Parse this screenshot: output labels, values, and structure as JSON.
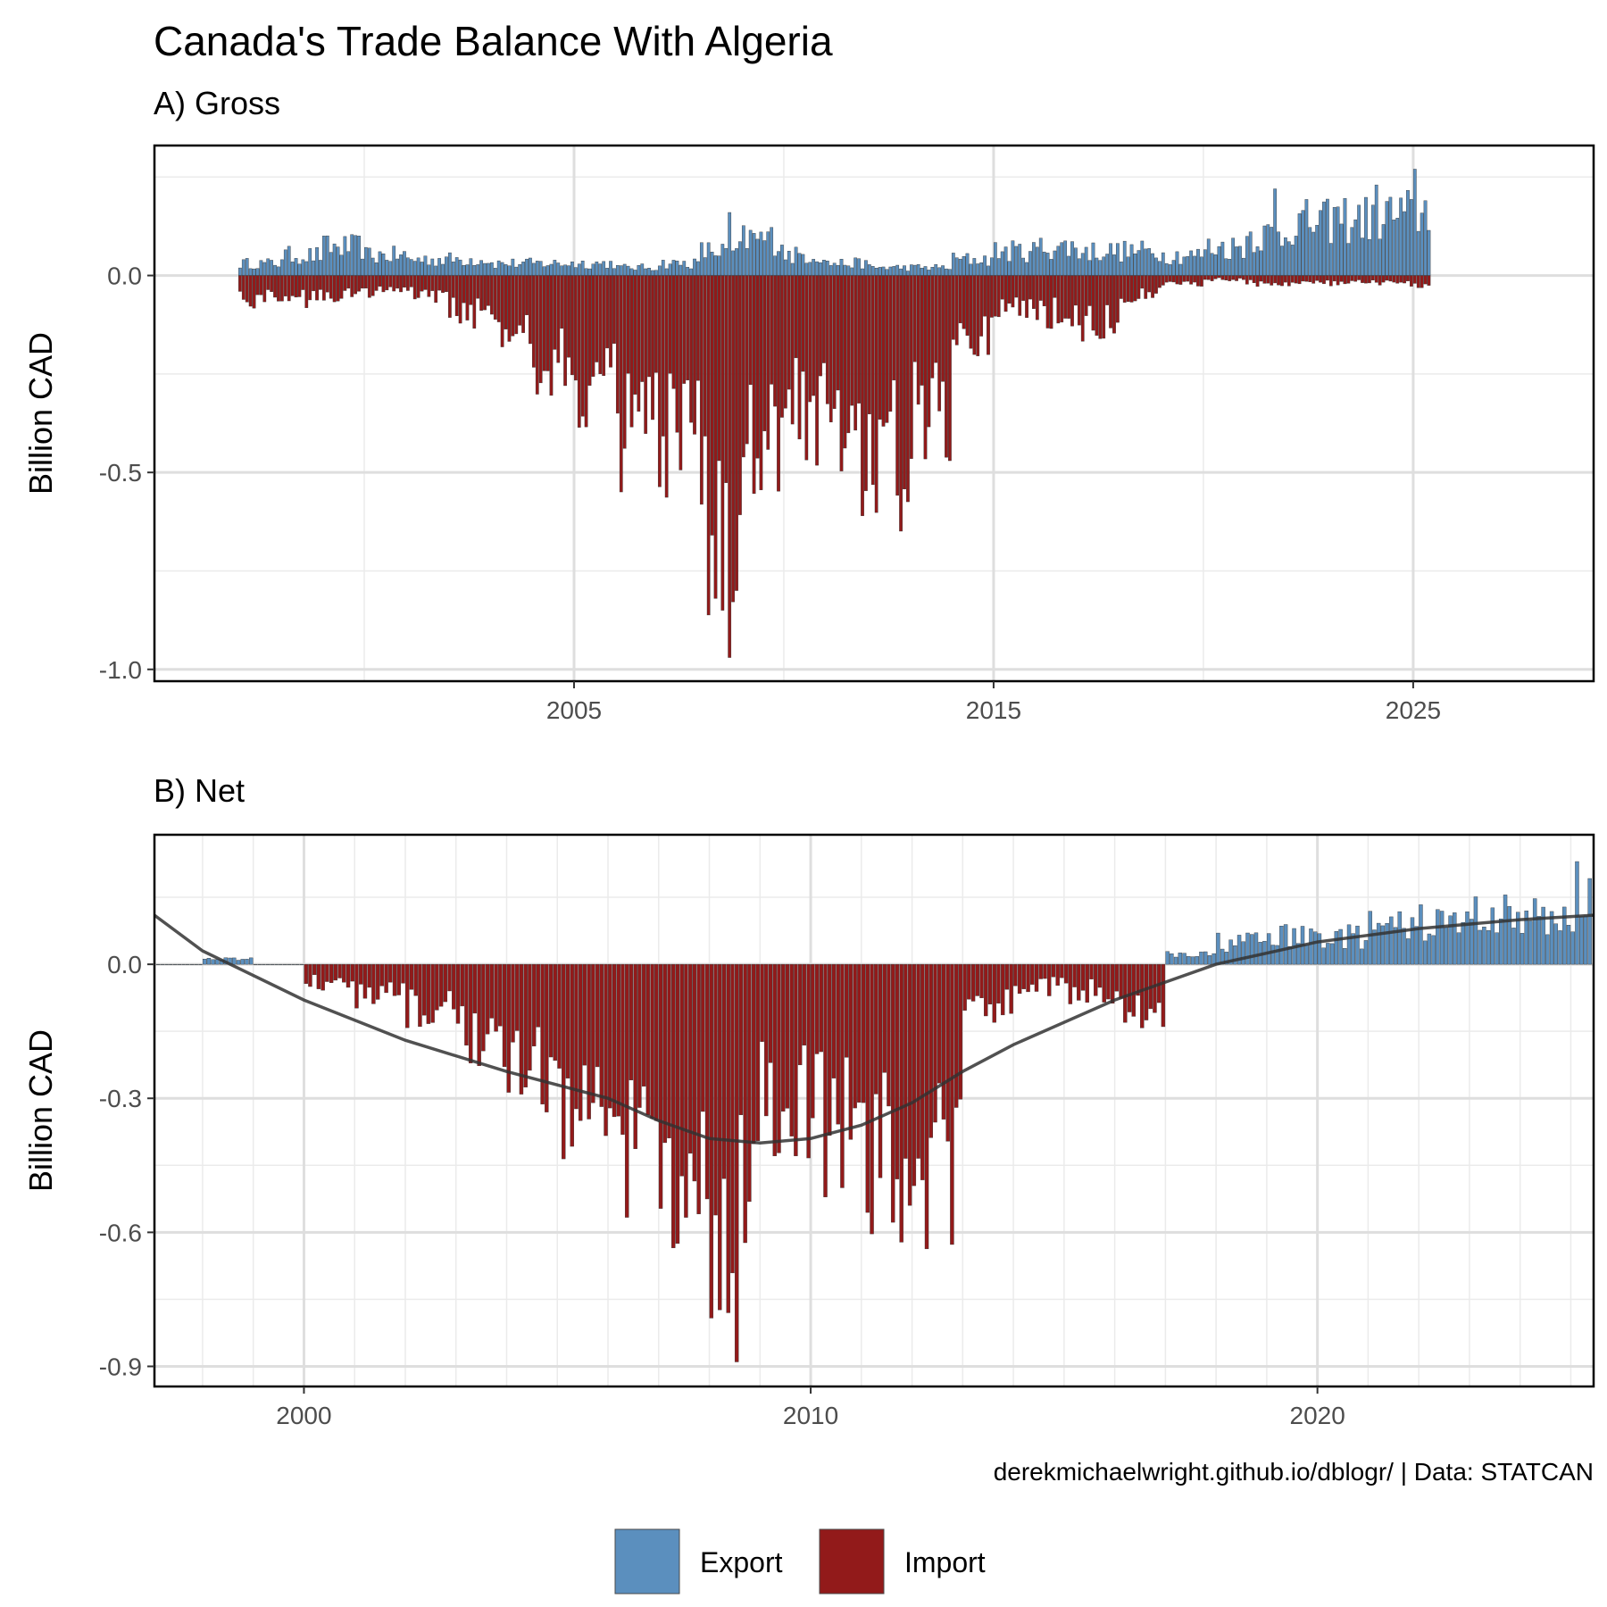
{
  "title": "Canada's Trade Balance With Algeria",
  "caption": "derekmichaelwright.github.io/dblogr/ | Data: STATCAN",
  "legend": [
    {
      "label": "Export",
      "color": "#5b8fbe"
    },
    {
      "label": "Import",
      "color": "#921a1a"
    }
  ],
  "chart_data": [
    {
      "type": "bar",
      "panel_title": "A) Gross",
      "ylabel": "Billion CAD",
      "xlim": [
        1995.0,
        2029.3
      ],
      "ylim": [
        -1.03,
        0.33
      ],
      "x_ticks": [
        2005,
        2015,
        2025
      ],
      "y_ticks": [
        0.0,
        -0.5,
        -1.0
      ],
      "y_tick_labels": [
        "0.0",
        "-0.5",
        "-1.0"
      ],
      "grid": true,
      "months_start": "1997-01",
      "series": [
        {
          "name": "Export",
          "yearly_values": {
            "1997": 0.03,
            "1998": 0.05,
            "1999": 0.07,
            "2000": 0.05,
            "2001": 0.04,
            "2002": 0.04,
            "2003": 0.03,
            "2004": 0.03,
            "2005": 0.03,
            "2006": 0.02,
            "2007": 0.03,
            "2008": 0.06,
            "2009": 0.09,
            "2010": 0.05,
            "2011": 0.03,
            "2012": 0.02,
            "2013": 0.02,
            "2014": 0.04,
            "2015": 0.06,
            "2016": 0.07,
            "2017": 0.06,
            "2018": 0.06,
            "2019": 0.05,
            "2020": 0.07,
            "2021": 0.1,
            "2022": 0.13,
            "2023": 0.14,
            "2024": 0.15,
            "2025": 0.16
          },
          "peaks": [
            {
              "x": "2025-01",
              "value": 0.27
            },
            {
              "x": "2021-09",
              "value": 0.22
            },
            {
              "x": "2024-02",
              "value": 0.23
            },
            {
              "x": "2008-09",
              "value": 0.16
            }
          ]
        },
        {
          "name": "Import",
          "yearly_values": {
            "1997": -0.06,
            "1998": -0.06,
            "1999": -0.05,
            "2000": -0.04,
            "2001": -0.05,
            "2002": -0.1,
            "2003": -0.13,
            "2004": -0.22,
            "2005": -0.3,
            "2006": -0.4,
            "2007": -0.45,
            "2008": -0.65,
            "2009": -0.4,
            "2010": -0.35,
            "2011": -0.4,
            "2012": -0.48,
            "2013": -0.35,
            "2014": -0.15,
            "2015": -0.08,
            "2016": -0.1,
            "2017": -0.12,
            "2018": -0.05,
            "2019": -0.02,
            "2020": -0.01,
            "2021": -0.02,
            "2022": -0.02,
            "2023": -0.02,
            "2024": -0.02,
            "2025": -0.03
          },
          "peaks": [
            {
              "x": "2008-09",
              "value": -0.97
            },
            {
              "x": "2008-07",
              "value": -0.85
            },
            {
              "x": "2008-05",
              "value": -0.82
            },
            {
              "x": "2008-11",
              "value": -0.8
            },
            {
              "x": "2011-11",
              "value": -0.61
            }
          ]
        }
      ]
    },
    {
      "type": "bar",
      "panel_title": "B) Net",
      "ylabel": "Billion CAD",
      "xlim": [
        1997.05,
        2025.45
      ],
      "ylim": [
        -0.945,
        0.29
      ],
      "x_ticks": [
        2000,
        2010,
        2020
      ],
      "y_ticks": [
        0.0,
        -0.3,
        -0.6,
        -0.9
      ],
      "y_tick_labels": [
        "0.0",
        "-0.3",
        "-0.6",
        "-0.9"
      ],
      "grid": true,
      "months_start": "1997-01",
      "yearly_values": {
        "1997": 0.0,
        "1998": 0.01,
        "1999": 0.0,
        "2000": -0.04,
        "2001": -0.07,
        "2002": -0.1,
        "2003": -0.16,
        "2004": -0.25,
        "2005": -0.32,
        "2006": -0.4,
        "2007": -0.45,
        "2008": -0.6,
        "2009": -0.3,
        "2010": -0.35,
        "2011": -0.42,
        "2012": -0.45,
        "2013": -0.1,
        "2014": -0.05,
        "2015": -0.06,
        "2016": -0.1,
        "2017": 0.02,
        "2018": 0.05,
        "2019": 0.06,
        "2020": 0.06,
        "2021": 0.08,
        "2022": 0.09,
        "2023": 0.11,
        "2024": 0.1,
        "2025": 0.13
      },
      "peaks": [
        {
          "x": "2008-07",
          "value": -0.89
        },
        {
          "x": "2008-05",
          "value": -0.78
        },
        {
          "x": "2025-02",
          "value": 0.23
        }
      ],
      "trend": {
        "x": [
          1997.0,
          1998.0,
          2000.0,
          2002.0,
          2004.0,
          2006.0,
          2007.0,
          2008.0,
          2009.0,
          2010.0,
          2011.0,
          2012.0,
          2013.0,
          2014.0,
          2016.0,
          2018.0,
          2020.0,
          2022.0,
          2024.0,
          2025.45
        ],
        "y": [
          0.11,
          0.03,
          -0.08,
          -0.17,
          -0.24,
          -0.3,
          -0.35,
          -0.39,
          -0.4,
          -0.39,
          -0.36,
          -0.31,
          -0.24,
          -0.18,
          -0.08,
          0.0,
          0.05,
          0.08,
          0.1,
          0.11
        ]
      }
    }
  ]
}
